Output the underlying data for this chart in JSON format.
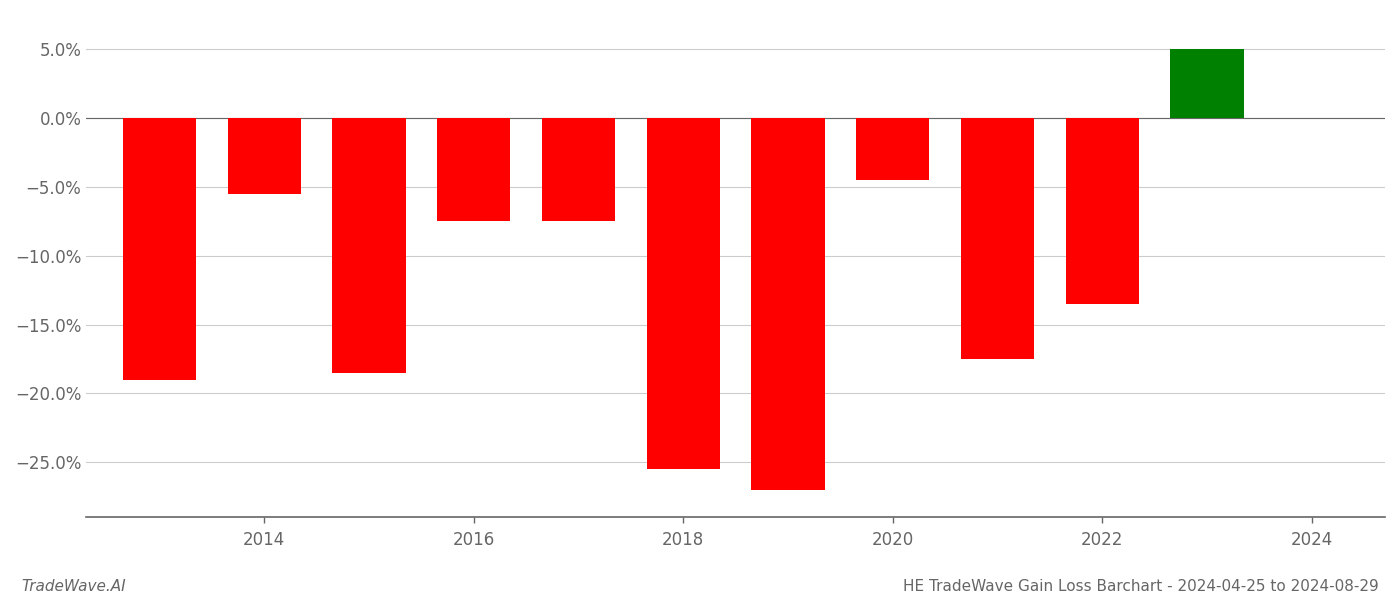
{
  "years": [
    2013,
    2014,
    2015,
    2016,
    2017,
    2018,
    2019,
    2020,
    2021,
    2022,
    2023
  ],
  "values": [
    -0.19,
    -0.055,
    -0.185,
    -0.075,
    -0.075,
    -0.255,
    -0.27,
    -0.045,
    -0.175,
    -0.135,
    0.05
  ],
  "bar_colors": [
    "#ff0000",
    "#ff0000",
    "#ff0000",
    "#ff0000",
    "#ff0000",
    "#ff0000",
    "#ff0000",
    "#ff0000",
    "#ff0000",
    "#ff0000",
    "#008000"
  ],
  "title": "HE TradeWave Gain Loss Barchart - 2024-04-25 to 2024-08-29",
  "watermark": "TradeWave.AI",
  "ylim": [
    -0.29,
    0.075
  ],
  "yticks": [
    -0.25,
    -0.2,
    -0.15,
    -0.1,
    -0.05,
    0.0,
    0.05
  ],
  "ytick_labels": [
    "−25.0%",
    "−20.0%",
    "−15.0%",
    "−10.0%",
    "−5.0%",
    "0.0%",
    "5.0%"
  ],
  "xticks": [
    2014,
    2016,
    2018,
    2020,
    2022,
    2024
  ],
  "xlim": [
    2012.3,
    2024.7
  ],
  "background_color": "#ffffff",
  "bar_width": 0.7,
  "grid_color": "#cccccc",
  "axis_color": "#666666",
  "title_fontsize": 11,
  "watermark_fontsize": 11,
  "tick_fontsize": 12
}
